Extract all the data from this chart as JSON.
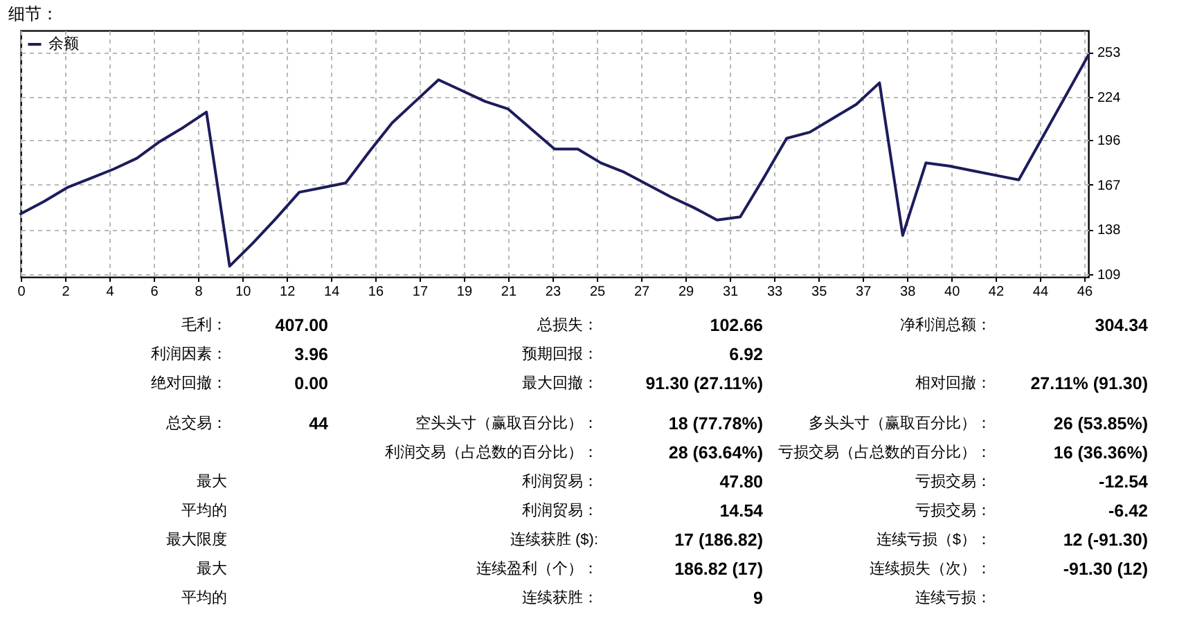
{
  "chart_data": [
    {
      "type": "line",
      "title": "细节：",
      "legend": "top left",
      "grid": true,
      "x": [
        0.27,
        1.27,
        2.27,
        3.27,
        4.27,
        5.27,
        6.27,
        7.27,
        8.27,
        9.27,
        10.27,
        11.27,
        12.27,
        13.27,
        14.27,
        15.27,
        16.27,
        17.27,
        18.27,
        19.27,
        20.27,
        21.27,
        22.27,
        23.27,
        24.27,
        25.27,
        26.27,
        27.27,
        28.27,
        29.27,
        30.27,
        31.27,
        32.27,
        33.27,
        34.27,
        35.27,
        36.27,
        37.27,
        38.27,
        39.27,
        40.27,
        41.27,
        42.27,
        43.27,
        44.27,
        45.27,
        46.27
      ],
      "series": [
        {
          "name": "余额",
          "color": "#1c1c5c",
          "values": [
            148,
            156,
            165,
            171,
            177,
            184,
            195,
            204,
            214,
            114,
            129,
            145,
            162,
            165,
            168,
            188,
            207,
            221,
            235,
            228,
            221,
            216,
            203,
            190,
            190,
            181,
            175,
            167,
            159,
            152,
            144,
            146,
            171,
            197,
            201,
            210,
            219,
            233,
            134,
            181,
            179,
            176,
            173,
            170,
            197,
            224,
            251
          ]
        }
      ],
      "xlim": [
        0.27,
        46.27
      ],
      "xticks": [
        {
          "value": 0.27,
          "label": "0"
        },
        {
          "value": 2.18,
          "label": "2"
        },
        {
          "value": 4.09,
          "label": "4"
        },
        6,
        {
          "value": 7.91,
          "label": "8"
        },
        {
          "value": 9.82,
          "label": "10"
        },
        {
          "value": 11.73,
          "label": "12"
        },
        {
          "value": 13.64,
          "label": "14"
        },
        {
          "value": 15.54,
          "label": "16"
        },
        {
          "value": 17.45,
          "label": "17"
        },
        {
          "value": 19.36,
          "label": "19"
        },
        {
          "value": 21.27,
          "label": "21"
        },
        {
          "value": 23.18,
          "label": "23"
        },
        {
          "value": 25.09,
          "label": "25"
        },
        27,
        {
          "value": 28.91,
          "label": "29"
        },
        {
          "value": 30.82,
          "label": "31"
        },
        {
          "value": 32.73,
          "label": "33"
        },
        {
          "value": 34.64,
          "label": "35"
        },
        {
          "value": 36.55,
          "label": "37"
        },
        {
          "value": 38.46,
          "label": "38"
        },
        {
          "value": 40.37,
          "label": "40"
        },
        {
          "value": 42.27,
          "label": "42"
        },
        {
          "value": 44.18,
          "label": "44"
        },
        {
          "value": 46.09,
          "label": "46"
        }
      ],
      "ylim": [
        107,
        267
      ],
      "yticks": [
        109,
        138,
        167,
        196,
        224,
        253
      ]
    },
    {
      "type": "other",
      "annotations": [
        "毛利：",
        "407.00",
        "总损失：",
        "102.66",
        "净利润总额：",
        "304.34",
        "利润因素：",
        "3.96",
        "预期回报：",
        "6.92",
        "绝对回撤：",
        "0.00",
        "最大回撤：",
        "91.30 (27.11%)",
        "相对回撤：",
        "27.11% (91.30)",
        "总交易：",
        "44",
        "空头头寸（赢取百分比）：",
        "18 (77.78%)",
        "多头头寸（赢取百分比）：",
        "26 (53.85%)",
        "利润交易（占总数的百分比）：",
        "28 (63.64%)",
        "亏损交易（占总数的百分比）：",
        "16 (36.36%)",
        "最大",
        "利润贸易：",
        "47.80",
        "亏损交易：",
        "-12.54",
        "平均的",
        "利润贸易：",
        "14.54",
        "亏损交易：",
        "-6.42",
        "最大限度",
        "连续获胜 ($):",
        "17 (186.82)",
        "连续亏损（$）：",
        "12 (-91.30)",
        "最大",
        "连续盈利（个）：",
        "186.82 (17)",
        "连续损失（次）：",
        "-91.30 (12)",
        "平均的",
        "连续获胜：",
        "9",
        "连续亏损："
      ]
    }
  ]
}
